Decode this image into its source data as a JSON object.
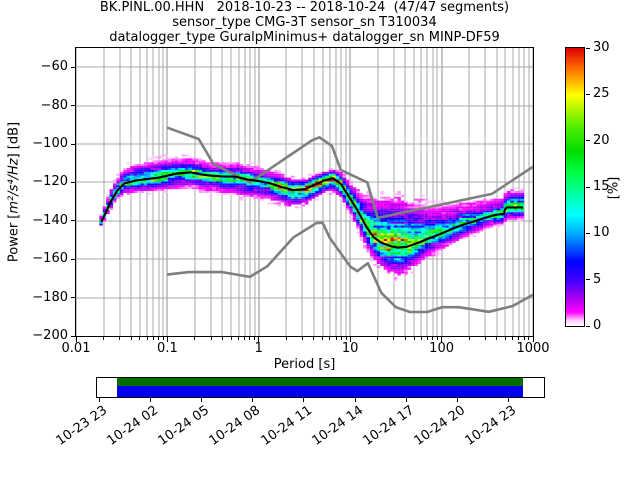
{
  "title": {
    "line1": "BK.PINL.00.HHN   2018-10-23 -- 2018-10-24  (47/47 segments)",
    "line2": "sensor_type CMG-3T sensor_sn T310034",
    "line3": "datalogger_type GuralpMinimus+ datalogger_sn MINP-DF59"
  },
  "axes": {
    "xlabel": "Period [s]",
    "ylabel_prefix": "Power [",
    "ylabel_units": "m²/s⁴/Hz",
    "ylabel_suffix": "] [dB]",
    "x_ticks": [
      {
        "label": "0.01",
        "value": 0.01
      },
      {
        "label": "0.1",
        "value": 0.1
      },
      {
        "label": "1",
        "value": 1
      },
      {
        "label": "10",
        "value": 10
      },
      {
        "label": "100",
        "value": 100
      },
      {
        "label": "1000",
        "value": 1000
      }
    ],
    "y_ticks": [
      {
        "label": "−60",
        "value": -60
      },
      {
        "label": "−80",
        "value": -80
      },
      {
        "label": "−100",
        "value": -100
      },
      {
        "label": "−120",
        "value": -120
      },
      {
        "label": "−140",
        "value": -140
      },
      {
        "label": "−160",
        "value": -160
      },
      {
        "label": "−180",
        "value": -180
      },
      {
        "label": "−200",
        "value": -200
      }
    ]
  },
  "colorbar": {
    "label": "[%]",
    "min": 0,
    "max": 30,
    "ticks": [
      {
        "label": "0",
        "value": 0
      },
      {
        "label": "5",
        "value": 5
      },
      {
        "label": "10",
        "value": 10
      },
      {
        "label": "15",
        "value": 15
      },
      {
        "label": "20",
        "value": 20
      },
      {
        "label": "25",
        "value": 25
      },
      {
        "label": "30",
        "value": 30
      }
    ],
    "stops": [
      [
        0.0,
        "#ffffff"
      ],
      [
        0.02,
        "#ffccff"
      ],
      [
        0.05,
        "#ff00ff"
      ],
      [
        0.11,
        "#9900ee"
      ],
      [
        0.16,
        "#4400ff"
      ],
      [
        0.23,
        "#0000ff"
      ],
      [
        0.33,
        "#00aaff"
      ],
      [
        0.4,
        "#00ffff"
      ],
      [
        0.47,
        "#00ffaa"
      ],
      [
        0.55,
        "#00ff44"
      ],
      [
        0.63,
        "#00dd00"
      ],
      [
        0.72,
        "#55ee00"
      ],
      [
        0.83,
        "#ffff00"
      ],
      [
        0.92,
        "#ff7700"
      ],
      [
        1.0,
        "#dd0000"
      ]
    ]
  },
  "timeline": {
    "labels": [
      "10-23 23",
      "10-24 02",
      "10-24 05",
      "10-24 08",
      "10-24 11",
      "10-24 14",
      "10-24 17",
      "10-24 20",
      "10-24 23"
    ],
    "bar_top_color": "#006f00",
    "bar_bottom_color": "#0000f0"
  },
  "chart_data": {
    "type": "heatmap",
    "subtype": "ppsd-probability-histogram",
    "x_scale": "log",
    "xlim": [
      0.01,
      1000
    ],
    "ylim": [
      -200,
      -50
    ],
    "grid": true,
    "segments_used": "47/47",
    "period_range_s": [
      0.018,
      800
    ],
    "db_bin_width_db": 1,
    "mode_line_db": [
      [
        0.019,
        -140.5
      ],
      [
        0.021,
        -136
      ],
      [
        0.024,
        -130
      ],
      [
        0.028,
        -124.5
      ],
      [
        0.034,
        -120.5
      ],
      [
        0.045,
        -119
      ],
      [
        0.06,
        -118.3
      ],
      [
        0.08,
        -117.5
      ],
      [
        0.1,
        -116.5
      ],
      [
        0.13,
        -115.3
      ],
      [
        0.18,
        -114.8
      ],
      [
        0.23,
        -115.8
      ],
      [
        0.3,
        -116.5
      ],
      [
        0.42,
        -117
      ],
      [
        0.55,
        -117
      ],
      [
        0.75,
        -118.5
      ],
      [
        1.0,
        -119.3
      ],
      [
        1.3,
        -120.3
      ],
      [
        1.8,
        -122.5
      ],
      [
        2.4,
        -124
      ],
      [
        3.2,
        -123.5
      ],
      [
        4.2,
        -121
      ],
      [
        5.2,
        -119
      ],
      [
        6.5,
        -117.8
      ],
      [
        8,
        -121
      ],
      [
        9,
        -125
      ],
      [
        10,
        -128.5
      ],
      [
        12,
        -134.5
      ],
      [
        15,
        -143
      ],
      [
        18,
        -148.5
      ],
      [
        22,
        -151.5
      ],
      [
        27,
        -153
      ],
      [
        33,
        -154
      ],
      [
        42,
        -153.5
      ],
      [
        55,
        -151.5
      ],
      [
        70,
        -149.5
      ],
      [
        90,
        -147.5
      ],
      [
        120,
        -145
      ],
      [
        160,
        -142.5
      ],
      [
        220,
        -140.5
      ],
      [
        300,
        -138.5
      ],
      [
        380,
        -137
      ],
      [
        450,
        -136.5
      ],
      [
        480,
        -136.5
      ],
      [
        495,
        -134
      ],
      [
        520,
        -133
      ],
      [
        780,
        -133
      ]
    ],
    "band_upper_offset_db": [
      [
        0.018,
        3
      ],
      [
        0.024,
        6
      ],
      [
        0.04,
        8
      ],
      [
        0.08,
        9
      ],
      [
        0.15,
        8
      ],
      [
        0.3,
        7
      ],
      [
        0.6,
        7
      ],
      [
        1,
        7
      ],
      [
        2,
        6
      ],
      [
        3.5,
        5
      ],
      [
        6,
        4.5
      ],
      [
        8,
        6
      ],
      [
        10,
        8
      ],
      [
        13,
        12
      ],
      [
        17,
        19
      ],
      [
        25,
        24
      ],
      [
        35,
        25
      ],
      [
        50,
        22
      ],
      [
        80,
        16
      ],
      [
        120,
        13
      ],
      [
        200,
        11
      ],
      [
        300,
        9
      ],
      [
        450,
        8
      ],
      [
        550,
        8
      ],
      [
        780,
        8
      ]
    ],
    "band_lower_offset_db": [
      [
        0.018,
        2
      ],
      [
        0.024,
        4
      ],
      [
        0.04,
        6
      ],
      [
        0.08,
        7
      ],
      [
        0.15,
        8
      ],
      [
        0.3,
        9
      ],
      [
        0.6,
        9
      ],
      [
        1,
        9
      ],
      [
        2,
        8
      ],
      [
        3.5,
        7
      ],
      [
        6,
        6
      ],
      [
        8,
        7
      ],
      [
        10,
        8
      ],
      [
        13,
        10
      ],
      [
        17,
        11
      ],
      [
        25,
        13
      ],
      [
        35,
        14
      ],
      [
        50,
        11
      ],
      [
        80,
        9
      ],
      [
        120,
        8
      ],
      [
        200,
        7
      ],
      [
        300,
        6
      ],
      [
        450,
        6
      ],
      [
        550,
        6
      ],
      [
        780,
        6
      ]
    ],
    "peak_probability_pct": [
      [
        0.018,
        16
      ],
      [
        0.03,
        18
      ],
      [
        0.06,
        17
      ],
      [
        0.12,
        16
      ],
      [
        0.25,
        16
      ],
      [
        0.5,
        17
      ],
      [
        0.9,
        16
      ],
      [
        1.5,
        18
      ],
      [
        2.2,
        26
      ],
      [
        3,
        29
      ],
      [
        4,
        27
      ],
      [
        5,
        30
      ],
      [
        6.5,
        29
      ],
      [
        8,
        24
      ],
      [
        10,
        18
      ],
      [
        14,
        20
      ],
      [
        20,
        24
      ],
      [
        30,
        24
      ],
      [
        45,
        21
      ],
      [
        70,
        17
      ],
      [
        110,
        15
      ],
      [
        200,
        14
      ],
      [
        350,
        13
      ],
      [
        480,
        18
      ],
      [
        600,
        24
      ],
      [
        780,
        24
      ]
    ],
    "noise_models": {
      "nhnm": [
        [
          0.1,
          -91.5
        ],
        [
          0.22,
          -97.4
        ],
        [
          0.32,
          -110.5
        ],
        [
          0.8,
          -120.0
        ],
        [
          3.8,
          -98.1
        ],
        [
          4.6,
          -96.5
        ],
        [
          6.3,
          -101.0
        ],
        [
          7.9,
          -113.5
        ],
        [
          15.4,
          -120.0
        ],
        [
          20,
          -138.5
        ],
        [
          354.8,
          -126.0
        ],
        [
          1000,
          -111.8
        ]
      ],
      "nlnm": [
        [
          0.1,
          -168.0
        ],
        [
          0.17,
          -166.7
        ],
        [
          0.4,
          -166.7
        ],
        [
          0.8,
          -169.2
        ],
        [
          1.24,
          -163.7
        ],
        [
          2.4,
          -148.6
        ],
        [
          4.3,
          -141.1
        ],
        [
          5.0,
          -141.1
        ],
        [
          6.0,
          -149.0
        ],
        [
          10,
          -163.8
        ],
        [
          12,
          -166.2
        ],
        [
          15.6,
          -162.1
        ],
        [
          21.9,
          -177.5
        ],
        [
          31.6,
          -185.0
        ],
        [
          45,
          -187.5
        ],
        [
          70,
          -187.5
        ],
        [
          101,
          -185.0
        ],
        [
          154,
          -185.0
        ],
        [
          328,
          -187.4
        ],
        [
          600,
          -184.4
        ],
        [
          1000,
          -178.5
        ]
      ]
    },
    "colors": {
      "mode_line": "#000000",
      "noise_model_lines": "#7f7f7f",
      "grid_major": "#8c8c8c",
      "grid_minor": "#a8a8a8"
    }
  }
}
